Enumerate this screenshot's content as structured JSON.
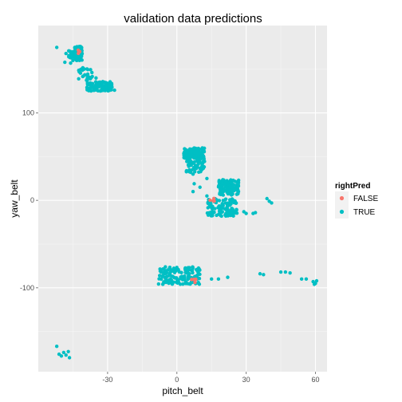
{
  "chart_data": {
    "type": "scatter",
    "title": "validation data predictions",
    "xlabel": "pitch_belt",
    "ylabel": "yaw_belt",
    "xlim": [
      -60,
      65
    ],
    "ylim": [
      -196,
      200
    ],
    "x_ticks": [
      -30,
      0,
      30,
      60
    ],
    "y_ticks": [
      -100,
      0,
      100
    ],
    "x_tick_labels": [
      "-30",
      "0",
      "30",
      "60"
    ],
    "y_tick_labels": [
      "-100",
      "0",
      "100"
    ],
    "grid": true,
    "legend": {
      "title": "rightPred",
      "placement": "right",
      "entries": [
        {
          "label": "FALSE",
          "color": "#F8766D"
        },
        {
          "label": "TRUE",
          "color": "#00BFC4"
        }
      ]
    },
    "colors": {
      "FALSE": "#F8766D",
      "TRUE": "#00BFC4",
      "panel": "#EBEBEB",
      "grid_major": "#FFFFFF",
      "grid_minor": "#F5F5F5"
    },
    "clusters": [
      {
        "group": "TRUE",
        "n": 120,
        "x": [
          -44.5,
          -41
        ],
        "y": [
          160,
          176
        ]
      },
      {
        "group": "TRUE",
        "n": 40,
        "x": [
          -47,
          -43
        ],
        "y": [
          163,
          171
        ]
      },
      {
        "group": "TRUE",
        "n": 90,
        "x": [
          -39,
          -28
        ],
        "y": [
          125,
          136
        ]
      },
      {
        "group": "TRUE",
        "n": 25,
        "x": [
          -43,
          -36
        ],
        "y": [
          137,
          152
        ]
      },
      {
        "group": "TRUE",
        "n": 130,
        "x": [
          3,
          12
        ],
        "y": [
          48,
          60
        ]
      },
      {
        "group": "TRUE",
        "n": 50,
        "x": [
          4,
          12
        ],
        "y": [
          32,
          48
        ]
      },
      {
        "group": "TRUE",
        "n": 130,
        "x": [
          18,
          27
        ],
        "y": [
          6,
          24
        ]
      },
      {
        "group": "TRUE",
        "n": 120,
        "x": [
          13,
          26
        ],
        "y": [
          -18,
          2
        ]
      },
      {
        "group": "TRUE",
        "n": 150,
        "x": [
          -8,
          10
        ],
        "y": [
          -96,
          -76
        ]
      },
      {
        "group": "FALSE",
        "n": 3,
        "x": [
          -43,
          -42
        ],
        "y": [
          168,
          172
        ]
      },
      {
        "group": "FALSE",
        "n": 4,
        "x": [
          14,
          17
        ],
        "y": [
          -1,
          3
        ]
      },
      {
        "group": "FALSE",
        "n": 4,
        "x": [
          6,
          9
        ],
        "y": [
          -94,
          -90
        ]
      }
    ],
    "points": [
      {
        "group": "TRUE",
        "x": -52,
        "y": 175
      },
      {
        "group": "TRUE",
        "x": -48,
        "y": 168
      },
      {
        "group": "TRUE",
        "x": -48.5,
        "y": 158
      },
      {
        "group": "TRUE",
        "x": -46,
        "y": 157
      },
      {
        "group": "TRUE",
        "x": -38,
        "y": 141
      },
      {
        "group": "TRUE",
        "x": -30,
        "y": 128
      },
      {
        "group": "TRUE",
        "x": -27,
        "y": 126
      },
      {
        "group": "TRUE",
        "x": -45,
        "y": 160
      },
      {
        "group": "TRUE",
        "x": -35,
        "y": 140
      },
      {
        "group": "TRUE",
        "x": 8,
        "y": 40
      },
      {
        "group": "TRUE",
        "x": 6,
        "y": 32
      },
      {
        "group": "TRUE",
        "x": 7,
        "y": 30
      },
      {
        "group": "TRUE",
        "x": 13,
        "y": 25
      },
      {
        "group": "TRUE",
        "x": 11,
        "y": 40
      },
      {
        "group": "TRUE",
        "x": 7.5,
        "y": 19
      },
      {
        "group": "TRUE",
        "x": 7,
        "y": 10
      },
      {
        "group": "TRUE",
        "x": 10,
        "y": 15
      },
      {
        "group": "TRUE",
        "x": 13,
        "y": 5
      },
      {
        "group": "TRUE",
        "x": 29,
        "y": -13
      },
      {
        "group": "TRUE",
        "x": 30,
        "y": -15
      },
      {
        "group": "TRUE",
        "x": 33,
        "y": -15
      },
      {
        "group": "TRUE",
        "x": 34,
        "y": -14
      },
      {
        "group": "TRUE",
        "x": 39,
        "y": 2
      },
      {
        "group": "TRUE",
        "x": 40,
        "y": -1
      },
      {
        "group": "TRUE",
        "x": 41,
        "y": -3
      },
      {
        "group": "TRUE",
        "x": 15,
        "y": -90
      },
      {
        "group": "TRUE",
        "x": 18,
        "y": -90
      },
      {
        "group": "TRUE",
        "x": 22,
        "y": -88
      },
      {
        "group": "TRUE",
        "x": 36,
        "y": -84
      },
      {
        "group": "TRUE",
        "x": 37.5,
        "y": -85
      },
      {
        "group": "TRUE",
        "x": 45,
        "y": -82
      },
      {
        "group": "TRUE",
        "x": 47,
        "y": -82
      },
      {
        "group": "TRUE",
        "x": 49,
        "y": -83
      },
      {
        "group": "TRUE",
        "x": 54,
        "y": -90
      },
      {
        "group": "TRUE",
        "x": 56,
        "y": -90
      },
      {
        "group": "TRUE",
        "x": 59,
        "y": -93
      },
      {
        "group": "TRUE",
        "x": 60,
        "y": -95
      },
      {
        "group": "TRUE",
        "x": 60.5,
        "y": -92
      },
      {
        "group": "TRUE",
        "x": 59.5,
        "y": -96
      },
      {
        "group": "TRUE",
        "x": -52,
        "y": -167
      },
      {
        "group": "TRUE",
        "x": -51,
        "y": -176
      },
      {
        "group": "TRUE",
        "x": -50,
        "y": -178
      },
      {
        "group": "TRUE",
        "x": -49,
        "y": -174
      },
      {
        "group": "TRUE",
        "x": -48,
        "y": -177
      },
      {
        "group": "TRUE",
        "x": -47,
        "y": -173
      },
      {
        "group": "TRUE",
        "x": -46.5,
        "y": -180
      }
    ]
  }
}
